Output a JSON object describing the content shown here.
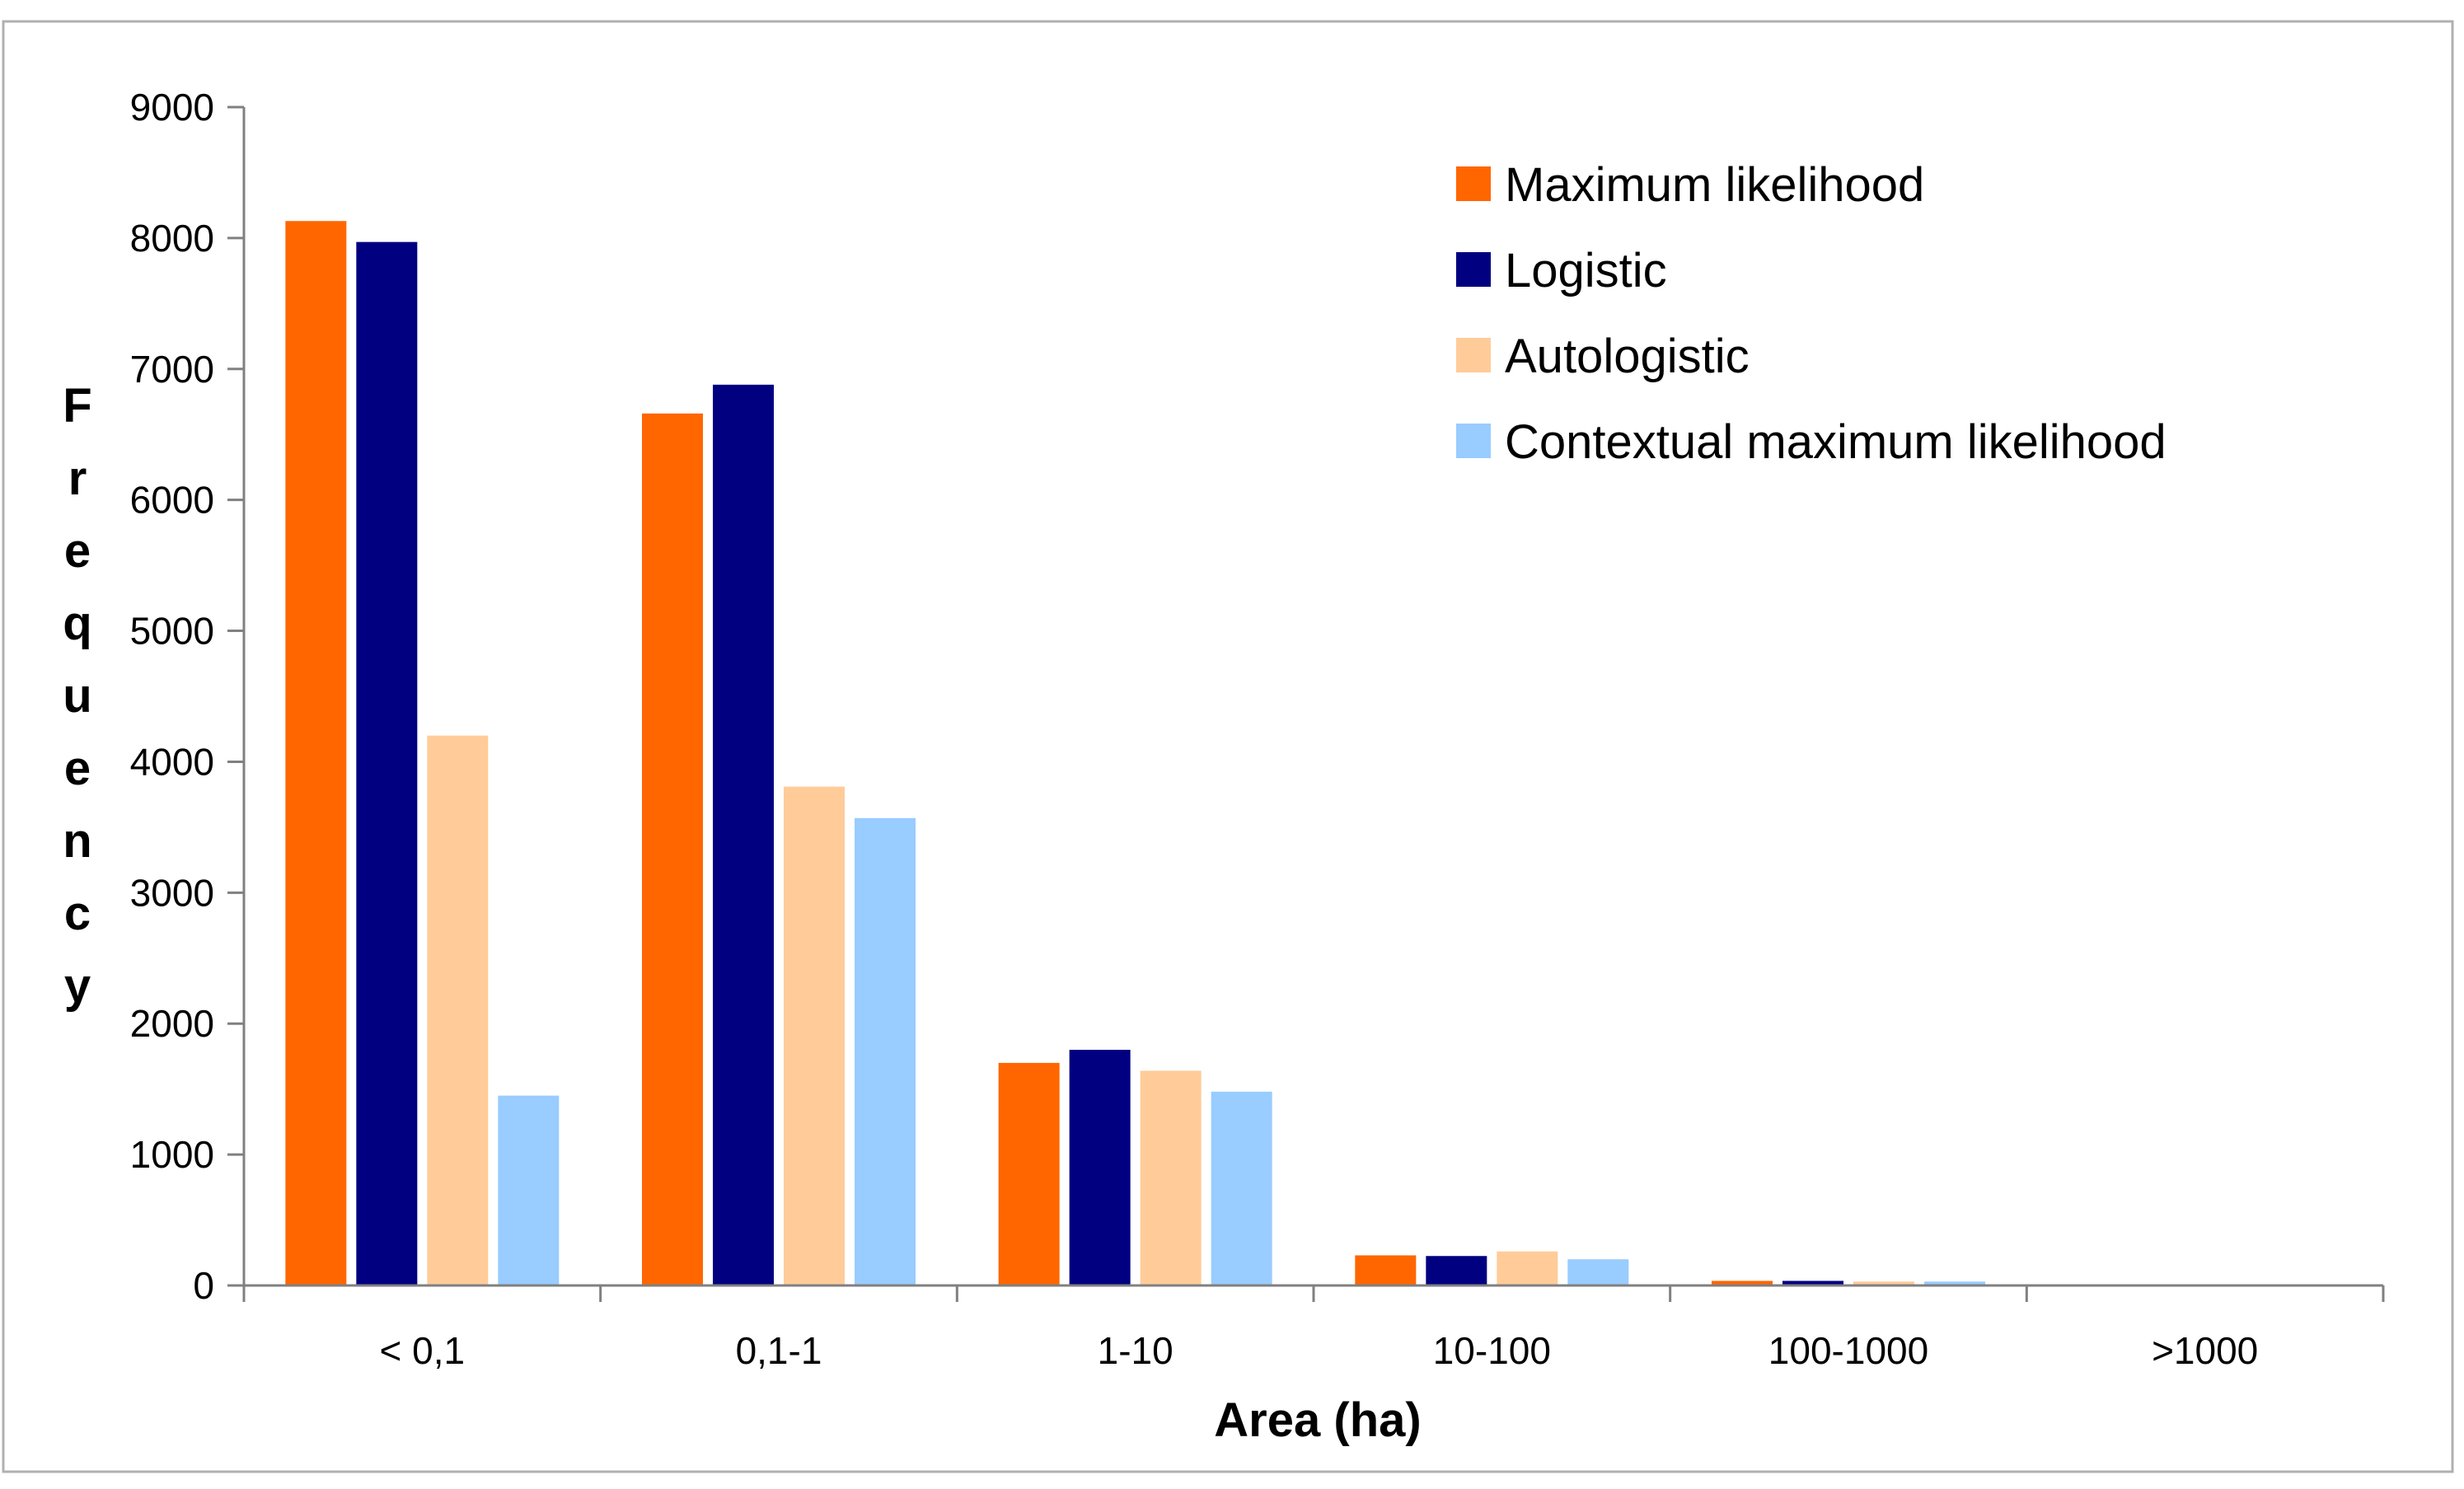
{
  "chart_data": {
    "type": "bar",
    "title": "",
    "xlabel": "Area (ha)",
    "ylabel": "Frequency",
    "ylim": [
      0,
      9000
    ],
    "yticks": [
      0,
      1000,
      2000,
      3000,
      4000,
      5000,
      6000,
      7000,
      8000,
      9000
    ],
    "grid": false,
    "legend_position": "top-right",
    "categories": [
      "< 0,1",
      "0,1-1",
      "1-10",
      "10-100",
      "100-1000",
      ">1000"
    ],
    "series": [
      {
        "name": "Maximum likelihood",
        "color": "#ff6600",
        "values": [
          8130,
          6660,
          1700,
          230,
          35,
          0
        ]
      },
      {
        "name": "Logistic",
        "color": "#000080",
        "values": [
          7970,
          6880,
          1800,
          225,
          35,
          0
        ]
      },
      {
        "name": "Autologistic",
        "color": "#ffcc99",
        "values": [
          4200,
          3810,
          1640,
          260,
          30,
          0
        ]
      },
      {
        "name": "Contextual maximum likelihood",
        "color": "#99ccff",
        "values": [
          1450,
          3570,
          1480,
          200,
          30,
          0
        ]
      }
    ]
  }
}
